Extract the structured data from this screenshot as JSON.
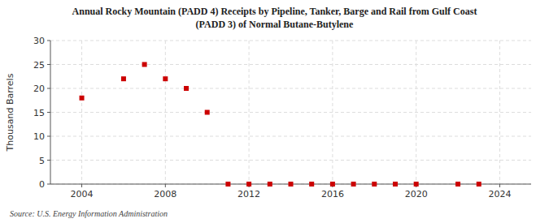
{
  "chart_data": {
    "type": "scatter",
    "title": "Annual Rocky Mountain (PADD 4) Receipts by Pipeline, Tanker, Barge and Rail from Gulf Coast\n(PADD 3) of Normal Butane-Butylene",
    "ylabel": "Thousand Barrels",
    "source": "Source: U.S. Energy Information Administration",
    "x": [
      2004,
      2006,
      2007,
      2008,
      2009,
      2010,
      2011,
      2012,
      2013,
      2014,
      2015,
      2016,
      2017,
      2018,
      2019,
      2020,
      2022,
      2023
    ],
    "values": [
      18,
      22,
      25,
      22,
      20,
      15,
      0,
      0,
      0,
      0,
      0,
      0,
      0,
      0,
      0,
      0,
      0,
      0
    ],
    "color": "#cc0000",
    "marker": "square",
    "xlim": [
      2002.5,
      2025.5
    ],
    "ylim": [
      0,
      30
    ],
    "xticks": [
      2004,
      2008,
      2012,
      2016,
      2020,
      2024
    ],
    "yticks": [
      0,
      5,
      10,
      15,
      20,
      25,
      30
    ],
    "grid": true
  }
}
